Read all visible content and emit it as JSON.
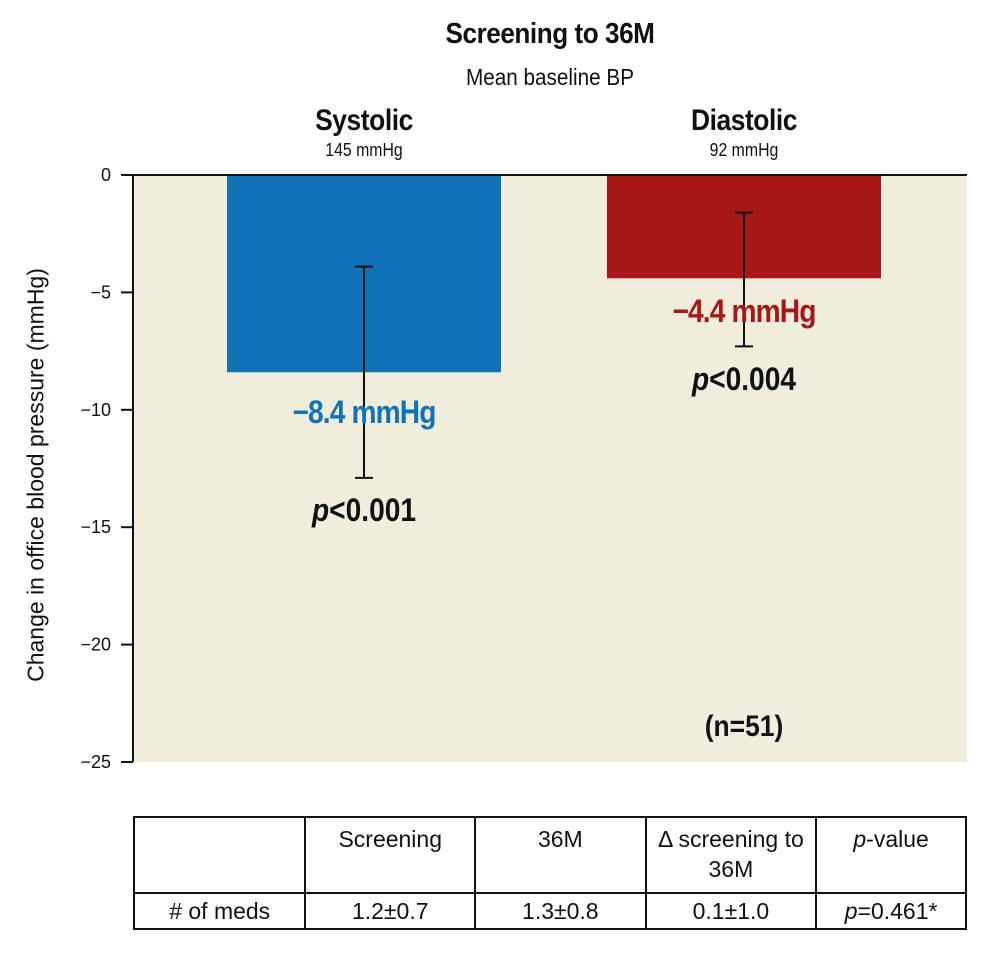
{
  "chart_data": {
    "type": "bar",
    "title": "Screening to 36M",
    "subtitle": "Mean baseline BP",
    "ylabel": "Change in office blood pressure (mmHg)",
    "xlabel": "",
    "ylim": [
      -25,
      0
    ],
    "yticks": [
      0,
      -5,
      -10,
      -15,
      -20,
      -25
    ],
    "ytick_labels": [
      "0",
      "−5",
      "−10",
      "−15",
      "−20",
      "−25"
    ],
    "grid": false,
    "categories": [
      "Systolic",
      "Diastolic"
    ],
    "baselines": [
      "145 mmHg",
      "92 mmHg"
    ],
    "values": [
      -8.4,
      -4.4
    ],
    "error_bars": [
      [
        -12.9,
        -3.9
      ],
      [
        -7.3,
        -1.6
      ]
    ],
    "value_labels": [
      "−8.4 mmHg",
      "−4.4 mmHg"
    ],
    "p_values": [
      "<0.001",
      "<0.004"
    ],
    "p_symbol": "p",
    "colors": [
      "#1172b8",
      "#a71717"
    ],
    "plot_background": "#f1eddc",
    "annotation": "(n=51)"
  },
  "table": {
    "headers": [
      "",
      "Screening",
      "36M",
      "Δ screening to 36M",
      "p-value"
    ],
    "header_pvalue_symbol": "p",
    "header_pvalue_rest": "-value",
    "rows": [
      {
        "label": "# of meds",
        "screening": "1.2±0.7",
        "m36": "1.3±0.8",
        "delta": "0.1±1.0",
        "p_symbol": "p",
        "p_rest": "=0.461*"
      }
    ]
  }
}
